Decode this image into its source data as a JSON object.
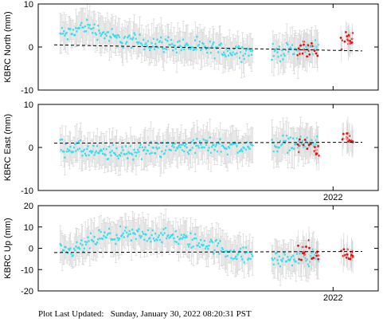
{
  "footer": {
    "label": "Plot Last Updated:",
    "value": "Sunday, January 30, 2022 08:20:31 PST"
  },
  "colors": {
    "main_points": "#2fe0f0",
    "recent_points": "#e01010",
    "error_bars": "#d4d4d4",
    "trend": "#000000"
  },
  "chart_data": [
    {
      "type": "scatter",
      "ylabel": "KBRC North  (mm)",
      "ylim": [
        -10,
        10
      ],
      "yticks": [
        -10,
        0,
        10
      ],
      "xtick_labels": [],
      "trend": [
        0.5,
        -0.9
      ],
      "recent_label": "",
      "series": [
        {
          "description": "daily positions",
          "color": "#2fe0f0",
          "samples": [
            [
              0.05,
              3
            ],
            [
              0.1,
              5
            ],
            [
              0.2,
              2
            ],
            [
              0.3,
              1
            ],
            [
              0.4,
              0.5
            ],
            [
              0.5,
              -0.5
            ],
            [
              0.6,
              -1
            ],
            [
              0.7,
              -1.5
            ],
            [
              0.8,
              -0.5
            ],
            [
              0.9,
              0.5
            ]
          ]
        },
        {
          "description": "recent positions",
          "color": "#e01010",
          "samples": [
            [
              0.82,
              -1
            ],
            [
              0.84,
              0.5
            ],
            [
              0.86,
              -3
            ],
            [
              0.9,
              0
            ],
            [
              0.93,
              1.5
            ],
            [
              0.95,
              2
            ]
          ]
        }
      ]
    },
    {
      "type": "scatter",
      "ylabel": "KBRC East  (mm)",
      "ylim": [
        -10,
        10
      ],
      "yticks": [
        -10,
        0,
        10
      ],
      "xtick_labels": [
        "2022"
      ],
      "trend": [
        1.0,
        1.2
      ],
      "series": [
        {
          "description": "daily positions",
          "color": "#2fe0f0",
          "samples": [
            [
              0.05,
              0
            ],
            [
              0.15,
              -1.5
            ],
            [
              0.25,
              -1
            ],
            [
              0.4,
              0
            ],
            [
              0.5,
              0.5
            ],
            [
              0.65,
              0
            ],
            [
              0.75,
              1
            ],
            [
              0.9,
              1
            ]
          ]
        },
        {
          "description": "recent positions",
          "color": "#e01010",
          "samples": [
            [
              0.8,
              0
            ],
            [
              0.83,
              1
            ],
            [
              0.85,
              -1
            ],
            [
              0.92,
              2
            ],
            [
              0.95,
              2
            ]
          ]
        }
      ]
    },
    {
      "type": "scatter",
      "ylabel": "KBRC Up  (mm)",
      "ylim": [
        -20,
        20
      ],
      "yticks": [
        -20,
        -10,
        0,
        10,
        20
      ],
      "xtick_labels": [
        "2022"
      ],
      "trend": [
        -2.0,
        -1.5
      ],
      "series": [
        {
          "description": "daily positions",
          "color": "#2fe0f0",
          "samples": [
            [
              0.05,
              -2
            ],
            [
              0.15,
              5
            ],
            [
              0.25,
              6
            ],
            [
              0.35,
              6
            ],
            [
              0.5,
              2
            ],
            [
              0.6,
              -3
            ],
            [
              0.7,
              -5
            ],
            [
              0.8,
              -5
            ],
            [
              0.9,
              -3
            ]
          ]
        },
        {
          "description": "recent positions",
          "color": "#e01010",
          "samples": [
            [
              0.8,
              -3
            ],
            [
              0.82,
              1
            ],
            [
              0.84,
              -4
            ],
            [
              0.92,
              -4
            ],
            [
              0.95,
              -3
            ]
          ]
        }
      ]
    }
  ]
}
